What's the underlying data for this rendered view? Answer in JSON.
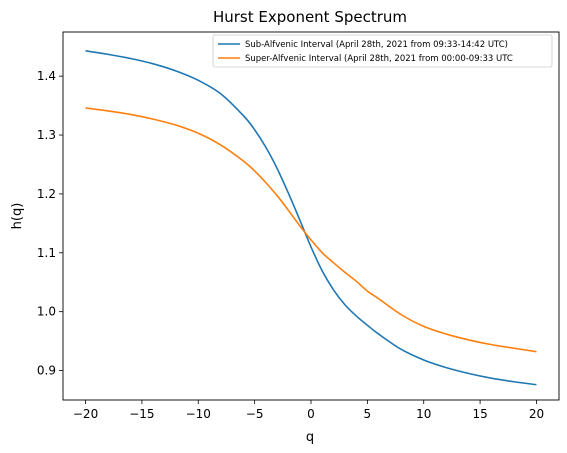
{
  "chart_data": {
    "type": "line",
    "title": "Hurst Exponent Spectrum",
    "xlabel": "q",
    "ylabel": "h(q)",
    "xlim": [
      -22,
      22
    ],
    "ylim": [
      0.85,
      1.475
    ],
    "xticks": [
      -20,
      -15,
      -10,
      -5,
      0,
      5,
      10,
      15,
      20
    ],
    "yticks": [
      0.9,
      1.0,
      1.1,
      1.2,
      1.3,
      1.4
    ],
    "xtick_labels": [
      "−20",
      "−15",
      "−10",
      "−5",
      "0",
      "5",
      "10",
      "15",
      "20"
    ],
    "ytick_labels": [
      "0.9",
      "1.0",
      "1.1",
      "1.2",
      "1.3",
      "1.4"
    ],
    "grid": false,
    "legend_position": "top-right",
    "series": [
      {
        "name": "Sub-Alfvenic Interval (April 28th, 2021 from 09:33-14:42 UTC)",
        "color": "#1f77b4",
        "x": [
          -20,
          -18,
          -16,
          -14,
          -12,
          -10,
          -8,
          -6,
          -5,
          -4,
          -3,
          -2,
          -1,
          0,
          1,
          2,
          3,
          4,
          5,
          6,
          8,
          10,
          12,
          14,
          16,
          18,
          20
        ],
        "y": [
          1.443,
          1.437,
          1.43,
          1.421,
          1.409,
          1.393,
          1.37,
          1.333,
          1.309,
          1.279,
          1.243,
          1.201,
          1.156,
          1.11,
          1.069,
          1.037,
          1.012,
          0.993,
          0.977,
          0.962,
          0.936,
          0.918,
          0.905,
          0.895,
          0.887,
          0.881,
          0.876
        ]
      },
      {
        "name": "Super-Alfvenic Interval (April 28th, 2021 from 00:00-09:33 UTC",
        "color": "#ff7f0e",
        "x": [
          -20,
          -18,
          -16,
          -14,
          -12,
          -10,
          -8,
          -6,
          -5,
          -4,
          -3,
          -2,
          -1,
          0,
          1,
          2,
          3,
          4,
          5,
          6,
          8,
          10,
          12,
          14,
          16,
          18,
          20
        ],
        "y": [
          1.346,
          1.341,
          1.335,
          1.327,
          1.317,
          1.303,
          1.283,
          1.256,
          1.239,
          1.219,
          1.197,
          1.172,
          1.146,
          1.122,
          1.1,
          1.083,
          1.067,
          1.052,
          1.035,
          1.022,
          0.995,
          0.975,
          0.962,
          0.952,
          0.944,
          0.938,
          0.932
        ]
      }
    ]
  }
}
